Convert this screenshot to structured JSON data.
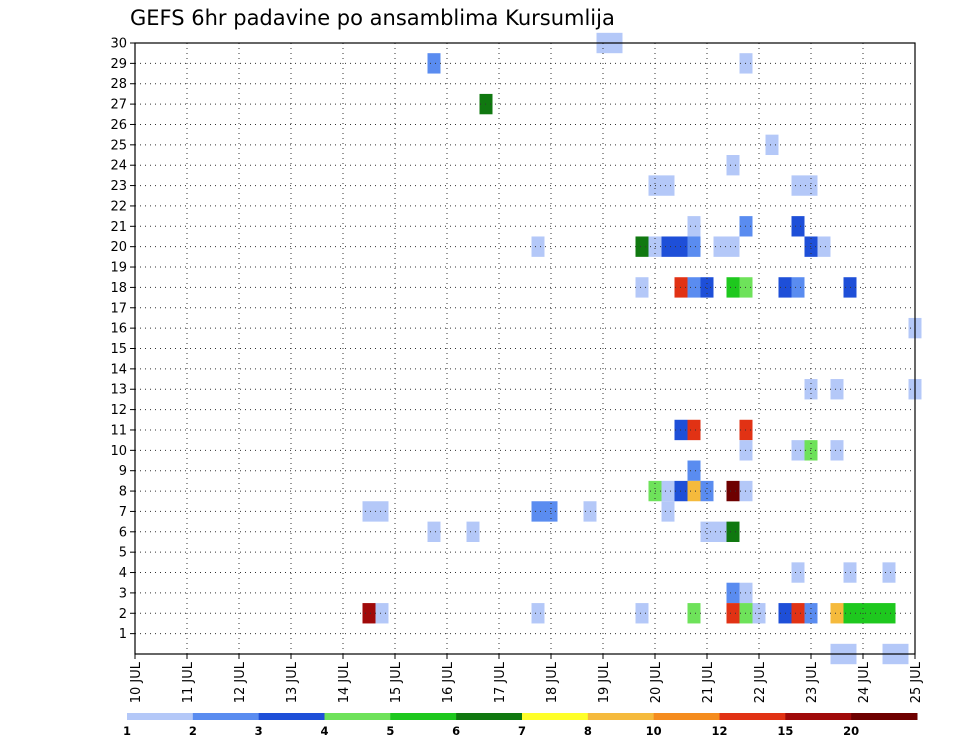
{
  "chart_data": {
    "type": "heatmap",
    "title": "GEFS 6hr padavine po ansamblima Kursumlija",
    "xlabel": "",
    "ylabel": "",
    "x_tick_labels": [
      "10 JUL",
      "11 JUL",
      "12 JUL",
      "13 JUL",
      "14 JUL",
      "15 JUL",
      "16 JUL",
      "17 JUL",
      "18 JUL",
      "19 JUL",
      "20 JUL",
      "21 JUL",
      "22 JUL",
      "23 JUL",
      "24 JUL",
      "25 JUL"
    ],
    "x_range_days": [
      10,
      25
    ],
    "x_step_hours": 6,
    "y_tick_labels": [
      "1",
      "2",
      "3",
      "4",
      "5",
      "6",
      "7",
      "8",
      "9",
      "10",
      "11",
      "12",
      "13",
      "14",
      "15",
      "16",
      "17",
      "18",
      "19",
      "20",
      "21",
      "22",
      "23",
      "24",
      "25",
      "26",
      "27",
      "28",
      "29",
      "30"
    ],
    "y_range": [
      0,
      30
    ],
    "grid": true,
    "colorbar": {
      "labels": [
        "1",
        "2",
        "3",
        "4",
        "5",
        "6",
        "7",
        "8",
        "10",
        "12",
        "15",
        "20"
      ],
      "colors": [
        "#b4c8f8",
        "#5a8cf0",
        "#1e4fd8",
        "#6ee25a",
        "#1ec81e",
        "#107810",
        "#ffff28",
        "#f5ba3c",
        "#f58c1e",
        "#e13214",
        "#a00a0a",
        "#6e0000"
      ]
    },
    "cells": [
      {
        "t": "19/00",
        "m": 30,
        "c": 0
      },
      {
        "t": "19/06",
        "m": 30,
        "c": 0
      },
      {
        "t": "15/18",
        "m": 29,
        "c": 1
      },
      {
        "t": "21/18",
        "m": 29,
        "c": 0
      },
      {
        "t": "16/18",
        "m": 27,
        "c": 5
      },
      {
        "t": "22/06",
        "m": 25,
        "c": 0
      },
      {
        "t": "21/12",
        "m": 24,
        "c": 0
      },
      {
        "t": "20/00",
        "m": 23,
        "c": 0
      },
      {
        "t": "20/06",
        "m": 23,
        "c": 0
      },
      {
        "t": "22/18",
        "m": 23,
        "c": 0
      },
      {
        "t": "23/00",
        "m": 23,
        "c": 0
      },
      {
        "t": "20/18",
        "m": 21,
        "c": 0
      },
      {
        "t": "21/18",
        "m": 21,
        "c": 1
      },
      {
        "t": "22/18",
        "m": 21,
        "c": 2
      },
      {
        "t": "17/18",
        "m": 20,
        "c": 0
      },
      {
        "t": "19/18",
        "m": 20,
        "c": 5
      },
      {
        "t": "20/00",
        "m": 20,
        "c": 0
      },
      {
        "t": "20/06",
        "m": 20,
        "c": 2
      },
      {
        "t": "20/12",
        "m": 20,
        "c": 2
      },
      {
        "t": "20/18",
        "m": 20,
        "c": 1
      },
      {
        "t": "21/06",
        "m": 20,
        "c": 0
      },
      {
        "t": "21/12",
        "m": 20,
        "c": 0
      },
      {
        "t": "23/00",
        "m": 20,
        "c": 2
      },
      {
        "t": "23/06",
        "m": 20,
        "c": 0
      },
      {
        "t": "19/18",
        "m": 18,
        "c": 0
      },
      {
        "t": "20/12",
        "m": 18,
        "c": 9
      },
      {
        "t": "20/18",
        "m": 18,
        "c": 1
      },
      {
        "t": "21/00",
        "m": 18,
        "c": 2
      },
      {
        "t": "21/12",
        "m": 18,
        "c": 4
      },
      {
        "t": "21/18",
        "m": 18,
        "c": 3
      },
      {
        "t": "22/12",
        "m": 18,
        "c": 2
      },
      {
        "t": "22/18",
        "m": 18,
        "c": 1
      },
      {
        "t": "23/18",
        "m": 18,
        "c": 2
      },
      {
        "t": "25/00",
        "m": 16,
        "c": 0
      },
      {
        "t": "23/00",
        "m": 13,
        "c": 0
      },
      {
        "t": "23/12",
        "m": 13,
        "c": 0
      },
      {
        "t": "25/00",
        "m": 13,
        "c": 0
      },
      {
        "t": "20/12",
        "m": 11,
        "c": 2
      },
      {
        "t": "20/18",
        "m": 11,
        "c": 9
      },
      {
        "t": "21/18",
        "m": 11,
        "c": 9
      },
      {
        "t": "21/18",
        "m": 10,
        "c": 0
      },
      {
        "t": "22/18",
        "m": 10,
        "c": 0
      },
      {
        "t": "23/00",
        "m": 10,
        "c": 3
      },
      {
        "t": "23/12",
        "m": 10,
        "c": 0
      },
      {
        "t": "20/18",
        "m": 9,
        "c": 1
      },
      {
        "t": "20/00",
        "m": 8,
        "c": 3
      },
      {
        "t": "20/06",
        "m": 8,
        "c": 0
      },
      {
        "t": "20/12",
        "m": 8,
        "c": 2
      },
      {
        "t": "20/18",
        "m": 8,
        "c": 7
      },
      {
        "t": "21/00",
        "m": 8,
        "c": 1
      },
      {
        "t": "21/12",
        "m": 8,
        "c": 11
      },
      {
        "t": "21/18",
        "m": 8,
        "c": 0
      },
      {
        "t": "14/12",
        "m": 7,
        "c": 0
      },
      {
        "t": "14/18",
        "m": 7,
        "c": 0
      },
      {
        "t": "17/18",
        "m": 7,
        "c": 1
      },
      {
        "t": "18/00",
        "m": 7,
        "c": 1
      },
      {
        "t": "18/18",
        "m": 7,
        "c": 0
      },
      {
        "t": "20/06",
        "m": 7,
        "c": 0
      },
      {
        "t": "15/18",
        "m": 6,
        "c": 0
      },
      {
        "t": "16/12",
        "m": 6,
        "c": 0
      },
      {
        "t": "21/00",
        "m": 6,
        "c": 0
      },
      {
        "t": "21/06",
        "m": 6,
        "c": 0
      },
      {
        "t": "21/12",
        "m": 6,
        "c": 5
      },
      {
        "t": "22/18",
        "m": 4,
        "c": 0
      },
      {
        "t": "23/18",
        "m": 4,
        "c": 0
      },
      {
        "t": "24/12",
        "m": 4,
        "c": 0
      },
      {
        "t": "21/12",
        "m": 3,
        "c": 1
      },
      {
        "t": "21/18",
        "m": 3,
        "c": 0
      },
      {
        "t": "14/12",
        "m": 2,
        "c": 10
      },
      {
        "t": "14/18",
        "m": 2,
        "c": 0
      },
      {
        "t": "17/18",
        "m": 2,
        "c": 0
      },
      {
        "t": "19/18",
        "m": 2,
        "c": 0
      },
      {
        "t": "20/18",
        "m": 2,
        "c": 3
      },
      {
        "t": "21/12",
        "m": 2,
        "c": 9
      },
      {
        "t": "21/18",
        "m": 2,
        "c": 3
      },
      {
        "t": "22/00",
        "m": 2,
        "c": 0
      },
      {
        "t": "22/12",
        "m": 2,
        "c": 2
      },
      {
        "t": "22/18",
        "m": 2,
        "c": 9
      },
      {
        "t": "23/00",
        "m": 2,
        "c": 1
      },
      {
        "t": "23/12",
        "m": 2,
        "c": 7
      },
      {
        "t": "23/18",
        "m": 2,
        "c": 4
      },
      {
        "t": "24/00",
        "m": 2,
        "c": 4
      },
      {
        "t": "24/06",
        "m": 2,
        "c": 4
      },
      {
        "t": "24/12",
        "m": 2,
        "c": 4
      },
      {
        "t": "23/12",
        "m": 0,
        "c": 0
      },
      {
        "t": "23/18",
        "m": 0,
        "c": 0
      },
      {
        "t": "24/12",
        "m": 0,
        "c": 0
      },
      {
        "t": "24/18",
        "m": 0,
        "c": 0
      }
    ]
  }
}
